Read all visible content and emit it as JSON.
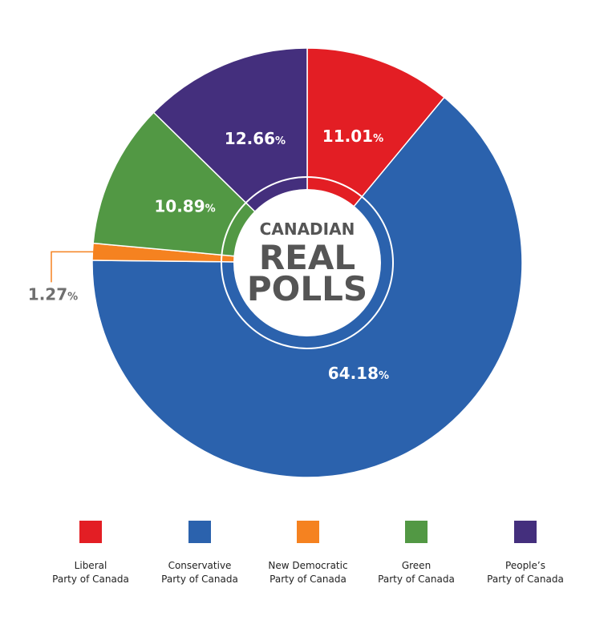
{
  "chart_data": {
    "type": "pie",
    "center_text": {
      "line1": "CANADIAN",
      "line2": "REAL",
      "line3": "POLLS"
    },
    "slices": [
      {
        "line1": "Liberal",
        "line2": "Party of Canada",
        "value": 11.01,
        "display": "11.01",
        "color": "#e31e24"
      },
      {
        "line1": "Conservative",
        "line2": "Party of Canada",
        "value": 64.18,
        "display": "64.18",
        "color": "#2b62ad"
      },
      {
        "line1": "New Democratic",
        "line2": "Party of Canada",
        "value": 1.27,
        "display": "1.27",
        "color": "#f58220"
      },
      {
        "line1": "Green",
        "line2": "Party of Canada",
        "value": 10.89,
        "display": "10.89",
        "color": "#529844"
      },
      {
        "line1": "People’s",
        "line2": "Party of Canada",
        "value": 12.66,
        "display": "12.66",
        "color": "#442f7d"
      }
    ],
    "unit_symbol": "%",
    "legend_position": "bottom"
  }
}
